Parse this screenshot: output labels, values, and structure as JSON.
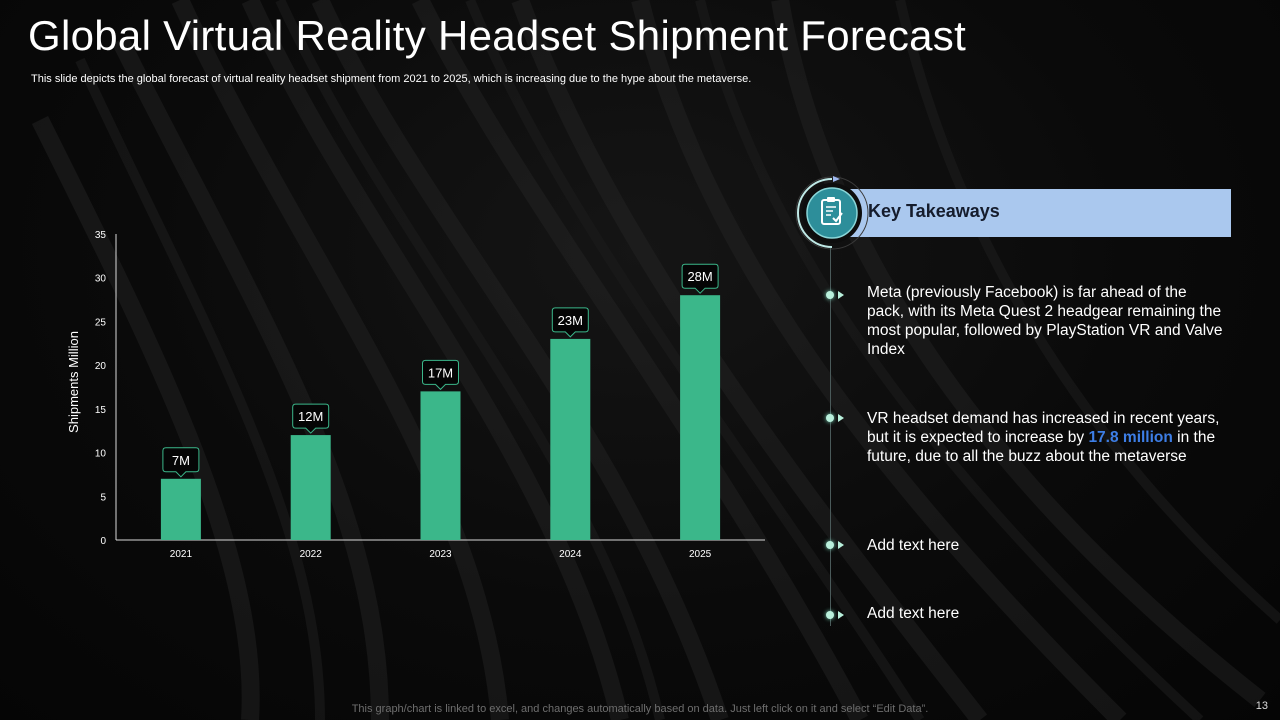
{
  "slide": {
    "title": "Global Virtual Reality Headset Shipment Forecast",
    "subtitle": "This slide depicts the global forecast of virtual reality headset shipment from 2021 to 2025, which is increasing due to the hype  about the metaverse.",
    "footer": "This graph/chart is linked to excel,  and changes automatically based on data. Just left click on it and select “Edit Data”.",
    "page_number": "13"
  },
  "chart_data": {
    "type": "bar",
    "title": "",
    "xlabel": "",
    "ylabel": "Shipments Million",
    "categories": [
      "2021",
      "2022",
      "2023",
      "2024",
      "2025"
    ],
    "values": [
      7,
      12,
      17,
      23,
      28
    ],
    "data_labels": [
      "7M",
      "12M",
      "17M",
      "23M",
      "28M"
    ],
    "ylim": [
      0,
      35
    ],
    "yticks": [
      0,
      5,
      10,
      15,
      20,
      25,
      30,
      35
    ],
    "grid": false,
    "bar_color": "#3bb78a"
  },
  "takeaways": {
    "title": "Key Takeaways",
    "icon": "clipboard-check-icon",
    "header_color": "#aac8ee",
    "items": [
      {
        "text_before": "Meta (previously Facebook) is far ahead of the pack, with its Meta Quest 2 headgear remaining the most popular, followed by PlayStation VR and Valve Index",
        "highlight": "",
        "text_after": ""
      },
      {
        "text_before": "VR headset demand has increased in recent years, but it is expected to increase by ",
        "highlight": "17.8 million",
        "text_after": " in the future,  due to all the buzz  about the metaverse"
      },
      {
        "text_before": "Add text here",
        "highlight": "",
        "text_after": ""
      },
      {
        "text_before": "Add text here",
        "highlight": "",
        "text_after": ""
      }
    ]
  }
}
